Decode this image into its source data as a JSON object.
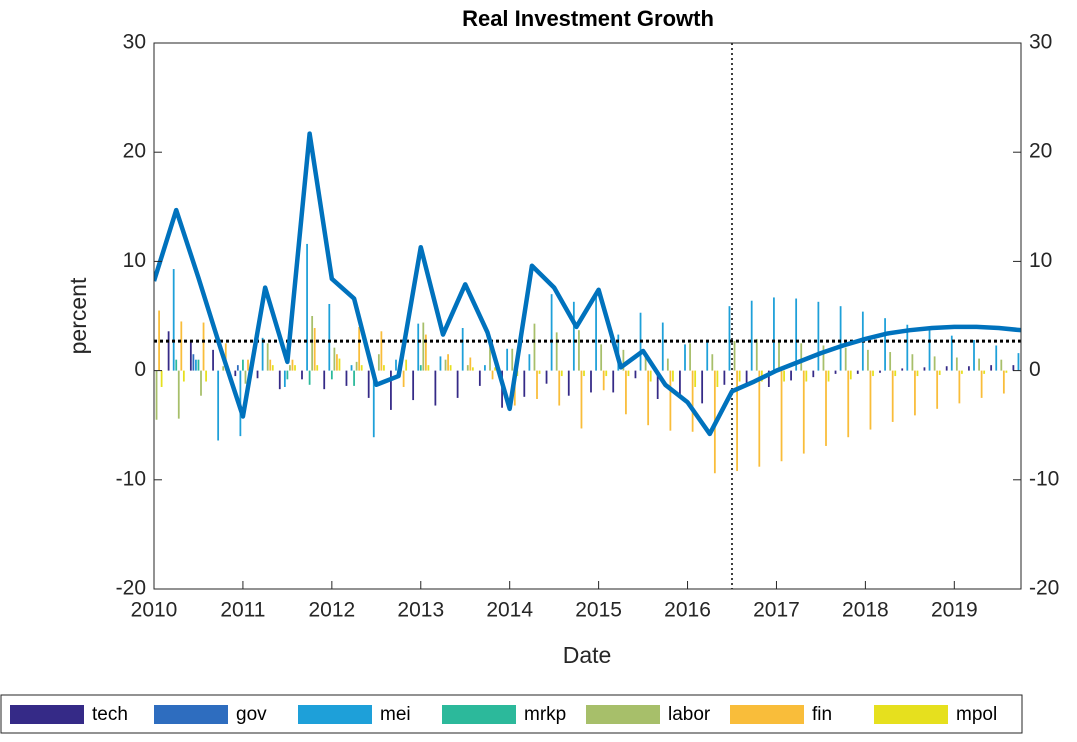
{
  "chart_data": {
    "type": "bar",
    "title": "Real Investment Growth",
    "xlabel": "Date",
    "ylabel": "percent",
    "x": [
      2010,
      2010.25,
      2010.5,
      2010.75,
      2011,
      2011.25,
      2011.5,
      2011.75,
      2012,
      2012.25,
      2012.5,
      2012.75,
      2013,
      2013.25,
      2013.5,
      2013.75,
      2014,
      2014.25,
      2014.5,
      2014.75,
      2015,
      2015.25,
      2015.5,
      2015.75,
      2016,
      2016.25,
      2016.5,
      2016.75,
      2017,
      2017.25,
      2017.5,
      2017.75,
      2018,
      2018.25,
      2018.5,
      2018.75,
      2019,
      2019.25,
      2019.5,
      2019.75
    ],
    "series": [
      {
        "name": "tech",
        "color": "#352a87",
        "values": [
          0,
          3.6,
          2.7,
          1.9,
          -0.5,
          -0.7,
          -1.7,
          -0.8,
          -1.7,
          -1.4,
          -2.5,
          -3.6,
          -2.7,
          -3.2,
          -2.5,
          -1.4,
          -3.4,
          -2.4,
          -1.2,
          -2.3,
          -2.0,
          -2.0,
          -0.7,
          -2.6,
          -2.2,
          -3.0,
          -1.3,
          -1.5,
          -1.5,
          -0.9,
          -0.6,
          -0.3,
          -0.3,
          -0.2,
          0.2,
          0.3,
          0.4,
          0.4,
          0.5,
          0.5
        ]
      },
      {
        "name": "gov",
        "color": "#2e6dbf",
        "values": [
          0,
          0,
          1.5,
          0,
          0.5,
          0,
          0,
          0,
          0,
          0,
          0,
          0,
          0,
          0,
          0,
          0,
          0,
          0,
          0,
          0,
          0,
          0,
          0,
          0,
          0,
          0,
          0,
          0,
          0,
          0,
          0,
          0,
          0,
          0,
          0,
          0,
          0,
          0,
          0,
          0
        ]
      },
      {
        "name": "mei",
        "color": "#1ea0d9",
        "values": [
          0,
          9.3,
          1.0,
          -6.4,
          -6.0,
          3.0,
          -1.5,
          11.6,
          6.1,
          0.5,
          -6.1,
          1.0,
          4.3,
          1.3,
          3.9,
          0.5,
          2.0,
          1.5,
          7.0,
          6.3,
          7.0,
          3.3,
          5.3,
          4.4,
          2.4,
          2.8,
          5.9,
          6.4,
          6.7,
          6.6,
          6.3,
          5.9,
          5.4,
          4.8,
          4.2,
          3.7,
          3.2,
          2.8,
          2.3,
          1.6
        ]
      },
      {
        "name": "mrkp",
        "color": "#2cb99b",
        "values": [
          0,
          1.0,
          1.0,
          0,
          1.0,
          0,
          -0.8,
          -1.3,
          -0.8,
          -1.4,
          0,
          0,
          0.5,
          0,
          0,
          0,
          0,
          0,
          0,
          0,
          0,
          0,
          0,
          0,
          0,
          0,
          0,
          0,
          0,
          0,
          0,
          0,
          0,
          0,
          0,
          0,
          0,
          0,
          0,
          0
        ]
      },
      {
        "name": "labor",
        "color": "#a7bf6a",
        "values": [
          -4.5,
          -4.4,
          -2.3,
          0.4,
          -1.2,
          2.5,
          0.5,
          5.0,
          2.1,
          0.8,
          1.5,
          0.5,
          4.4,
          1.0,
          0.5,
          2.5,
          2.0,
          4.3,
          3.5,
          3.7,
          2.4,
          1.9,
          1.5,
          1.1,
          2.5,
          1.5,
          2.7,
          2.9,
          2.6,
          2.5,
          2.3,
          2.1,
          1.9,
          1.7,
          1.5,
          1.3,
          1.2,
          1.1,
          1.0,
          0.7
        ]
      },
      {
        "name": "fin",
        "color": "#f9bd3a",
        "values": [
          5.5,
          4.5,
          4.4,
          2.5,
          1.0,
          1.0,
          1.0,
          3.9,
          1.5,
          4.0,
          3.6,
          -1.5,
          3.3,
          1.5,
          1.2,
          -0.8,
          -3.2,
          -2.6,
          -3.2,
          -5.3,
          -1.8,
          -4.0,
          -5.0,
          -5.5,
          -5.6,
          -9.4,
          -9.2,
          -8.8,
          -8.3,
          -7.6,
          -6.9,
          -6.1,
          -5.4,
          -4.7,
          -4.1,
          -3.5,
          -3.0,
          -2.5,
          -2.1,
          -1.7
        ]
      },
      {
        "name": "mpol",
        "color": "#e6e01e",
        "values": [
          -1.5,
          -1.0,
          -1.0,
          0,
          -0.5,
          0.5,
          0.5,
          0.5,
          1.1,
          0.5,
          0.5,
          1.0,
          0.5,
          0.5,
          0.3,
          0.3,
          -0.5,
          -0.3,
          -0.5,
          -0.5,
          -0.5,
          -0.5,
          -1.0,
          -1.0,
          -1.5,
          -1.5,
          -1.0,
          -1.0,
          -1.0,
          -1.0,
          -1.0,
          -0.8,
          -0.5,
          -0.5,
          -0.5,
          -0.4,
          -0.3,
          -0.3,
          -0.2,
          -0.2
        ]
      }
    ],
    "line": {
      "color": "#0072bd",
      "values": [
        8.2,
        14.7,
        8.5,
        2.0,
        -4.2,
        7.6,
        0.8,
        21.7,
        8.4,
        6.6,
        -1.3,
        -0.5,
        11.3,
        3.3,
        7.9,
        3.5,
        -3.5,
        9.6,
        7.6,
        4.0,
        7.4,
        0.3,
        1.8,
        -1.3,
        -2.9,
        -5.8,
        -1.9,
        -1.0,
        0.0,
        0.8,
        1.6,
        2.3,
        2.9,
        3.4,
        3.7,
        3.9,
        4.0,
        4.0,
        3.9,
        3.7
      ]
    },
    "hline": 2.7,
    "vline": 2016.5,
    "xlim": [
      2010,
      2019.75
    ],
    "xticks": [
      2010,
      2011,
      2012,
      2013,
      2014,
      2015,
      2016,
      2017,
      2018,
      2019
    ],
    "ylim": [
      -20,
      30
    ],
    "yticks": [
      -20,
      -10,
      0,
      10,
      20,
      30
    ],
    "y2lim": [
      -20,
      30
    ],
    "y2ticks": [
      -20,
      -10,
      0,
      10,
      20,
      30
    ]
  }
}
